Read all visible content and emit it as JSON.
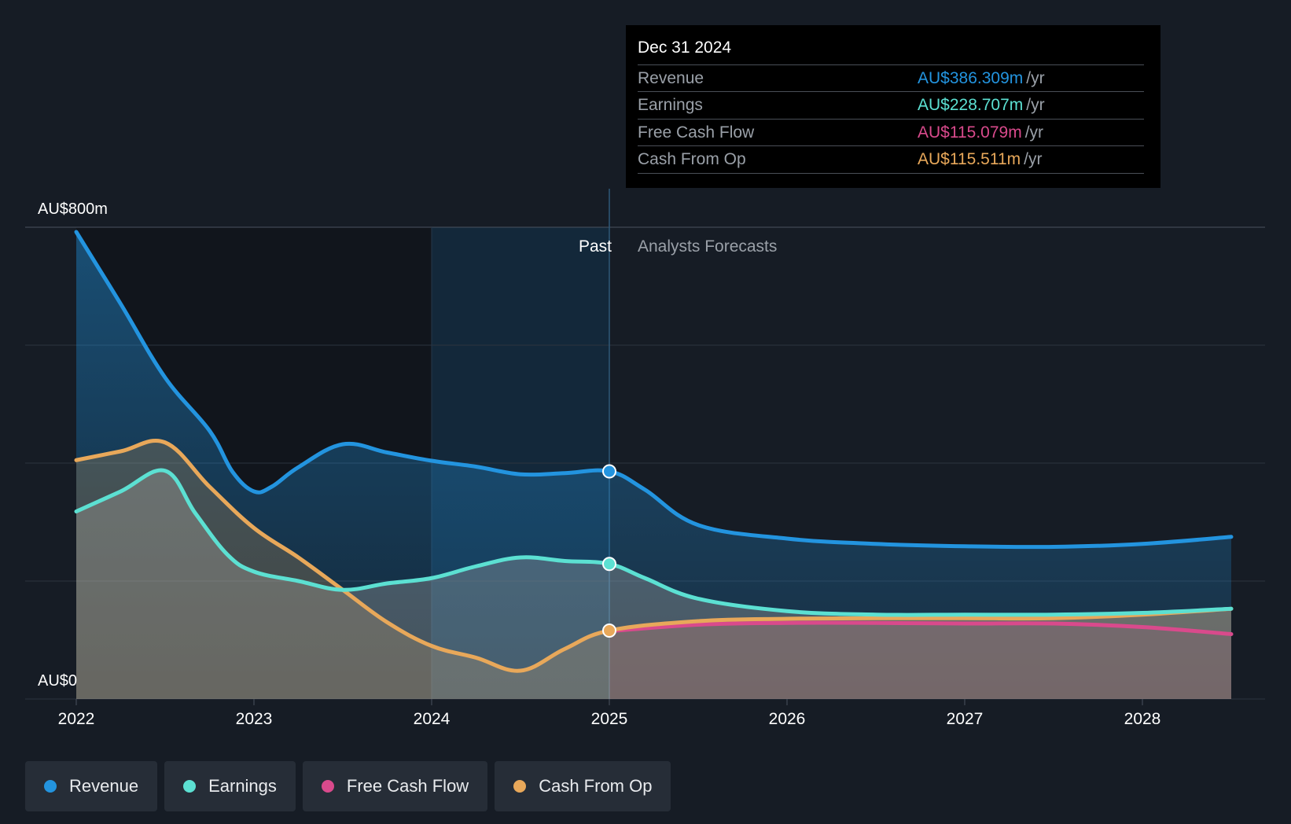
{
  "chart_data": {
    "type": "area",
    "y_max_label": "AU$800m",
    "y_min_label": "AU$0",
    "ylim": [
      0,
      800
    ],
    "xlim": [
      2022.0,
      2028.5
    ],
    "x_ticks": [
      "2022",
      "2023",
      "2024",
      "2025",
      "2026",
      "2027",
      "2028"
    ],
    "past_label": "Past",
    "forecast_label": "Analysts Forecasts",
    "past_end": 2025.0,
    "highlight_start": 2024.0,
    "series": [
      {
        "name": "Revenue",
        "color": "#2394df",
        "points": [
          [
            2022.0,
            792
          ],
          [
            2022.25,
            670
          ],
          [
            2022.5,
            545
          ],
          [
            2022.75,
            455
          ],
          [
            2022.88,
            385
          ],
          [
            2023.0,
            352
          ],
          [
            2023.1,
            360
          ],
          [
            2023.25,
            393
          ],
          [
            2023.5,
            432
          ],
          [
            2023.75,
            418
          ],
          [
            2024.0,
            404
          ],
          [
            2024.25,
            394
          ],
          [
            2024.5,
            381
          ],
          [
            2024.75,
            383
          ],
          [
            2025.0,
            386
          ],
          [
            2025.2,
            355
          ],
          [
            2025.5,
            295
          ],
          [
            2026.0,
            272
          ],
          [
            2026.5,
            263
          ],
          [
            2027.0,
            259
          ],
          [
            2027.5,
            258
          ],
          [
            2028.0,
            263
          ],
          [
            2028.5,
            275
          ]
        ]
      },
      {
        "name": "Earnings",
        "color": "#5ce0d2",
        "points": [
          [
            2022.0,
            318
          ],
          [
            2022.25,
            352
          ],
          [
            2022.5,
            387
          ],
          [
            2022.67,
            315
          ],
          [
            2022.85,
            245
          ],
          [
            2023.0,
            216
          ],
          [
            2023.25,
            200
          ],
          [
            2023.5,
            185
          ],
          [
            2023.75,
            196
          ],
          [
            2024.0,
            205
          ],
          [
            2024.25,
            225
          ],
          [
            2024.5,
            240
          ],
          [
            2024.75,
            234
          ],
          [
            2025.0,
            229
          ],
          [
            2025.2,
            205
          ],
          [
            2025.5,
            170
          ],
          [
            2026.0,
            149
          ],
          [
            2026.5,
            143
          ],
          [
            2027.0,
            143
          ],
          [
            2027.5,
            143
          ],
          [
            2028.0,
            146
          ],
          [
            2028.5,
            153
          ]
        ]
      },
      {
        "name": "Free Cash Flow",
        "color": "#d94a8c",
        "points": [
          [
            2025.0,
            115
          ],
          [
            2025.5,
            126
          ],
          [
            2026.0,
            129
          ],
          [
            2026.5,
            129
          ],
          [
            2027.0,
            128
          ],
          [
            2027.5,
            128
          ],
          [
            2028.0,
            122
          ],
          [
            2028.5,
            110
          ]
        ]
      },
      {
        "name": "Cash From Op",
        "color": "#e8a85a",
        "points": [
          [
            2022.0,
            405
          ],
          [
            2022.25,
            420
          ],
          [
            2022.5,
            435
          ],
          [
            2022.75,
            360
          ],
          [
            2023.0,
            290
          ],
          [
            2023.25,
            240
          ],
          [
            2023.5,
            185
          ],
          [
            2023.75,
            130
          ],
          [
            2024.0,
            90
          ],
          [
            2024.25,
            70
          ],
          [
            2024.5,
            48
          ],
          [
            2024.75,
            85
          ],
          [
            2025.0,
            116
          ],
          [
            2025.5,
            132
          ],
          [
            2026.0,
            136
          ],
          [
            2026.5,
            137
          ],
          [
            2027.0,
            137
          ],
          [
            2027.5,
            137
          ],
          [
            2028.0,
            143
          ],
          [
            2028.5,
            153
          ]
        ]
      }
    ]
  },
  "tooltip": {
    "date": "Dec 31 2024",
    "rows": [
      {
        "label": "Revenue",
        "value": "AU$386.309m",
        "unit": "/yr",
        "color": "#2394df"
      },
      {
        "label": "Earnings",
        "value": "AU$228.707m",
        "unit": "/yr",
        "color": "#5ce0d2"
      },
      {
        "label": "Free Cash Flow",
        "value": "AU$115.079m",
        "unit": "/yr",
        "color": "#d94a8c"
      },
      {
        "label": "Cash From Op",
        "value": "AU$115.511m",
        "unit": "/yr",
        "color": "#e8a85a"
      }
    ]
  },
  "legend": [
    {
      "label": "Revenue",
      "color": "#2394df"
    },
    {
      "label": "Earnings",
      "color": "#5ce0d2"
    },
    {
      "label": "Free Cash Flow",
      "color": "#d94a8c"
    },
    {
      "label": "Cash From Op",
      "color": "#e8a85a"
    }
  ]
}
